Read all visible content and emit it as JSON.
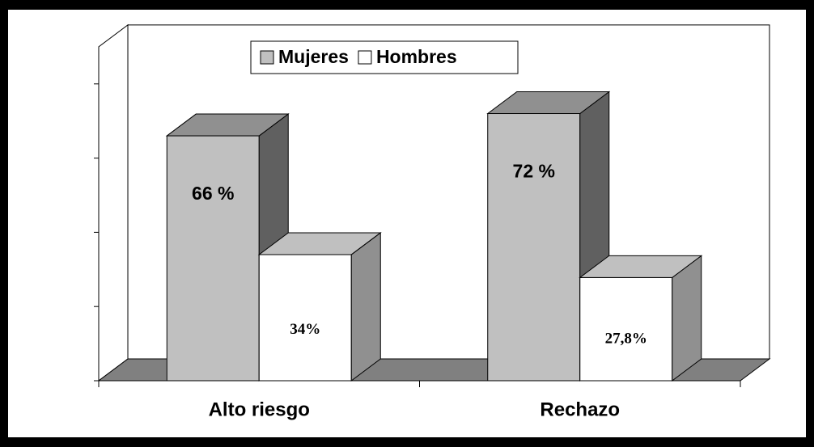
{
  "chart_data": {
    "type": "bar3d",
    "categories": [
      "Alto riesgo",
      "Rechazo"
    ],
    "series": [
      {
        "name": "Mujeres",
        "color": "#c0c0c0",
        "values": [
          66,
          72
        ],
        "value_labels": [
          "66 %",
          "72 %"
        ]
      },
      {
        "name": "Hombres",
        "color": "#ffffff",
        "values": [
          34,
          27.8
        ],
        "value_labels": [
          "34%",
          "27,8%"
        ]
      }
    ],
    "ylim": [
      0,
      90
    ],
    "yticks": [
      0,
      20,
      40,
      60,
      80
    ],
    "legend": "top"
  }
}
